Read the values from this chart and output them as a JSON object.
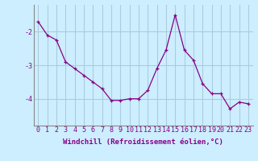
{
  "x": [
    0,
    1,
    2,
    3,
    4,
    5,
    6,
    7,
    8,
    9,
    10,
    11,
    12,
    13,
    14,
    15,
    16,
    17,
    18,
    19,
    20,
    21,
    22,
    23
  ],
  "y": [
    -1.7,
    -2.1,
    -2.25,
    -2.9,
    -3.1,
    -3.3,
    -3.5,
    -3.7,
    -4.05,
    -4.05,
    -4.0,
    -4.0,
    -3.75,
    -3.1,
    -2.55,
    -1.5,
    -2.55,
    -2.85,
    -3.55,
    -3.85,
    -3.85,
    -4.3,
    -4.1,
    -4.15
  ],
  "line_color": "#880088",
  "marker": "+",
  "bg_color": "#cceeff",
  "grid_color": "#aaccdd",
  "xlabel": "Windchill (Refroidissement éolien,°C)",
  "xlabel_fontsize": 6.5,
  "xtick_labels": [
    "0",
    "1",
    "2",
    "3",
    "4",
    "5",
    "6",
    "7",
    "8",
    "9",
    "10",
    "11",
    "12",
    "13",
    "14",
    "15",
    "16",
    "17",
    "18",
    "19",
    "20",
    "21",
    "22",
    "23"
  ],
  "ytick_values": [
    -4,
    -3,
    -2
  ],
  "ylim": [
    -4.8,
    -1.2
  ],
  "xlim": [
    -0.5,
    23.5
  ],
  "tick_fontsize": 6.0,
  "marker_size": 3.5,
  "linewidth": 0.9
}
